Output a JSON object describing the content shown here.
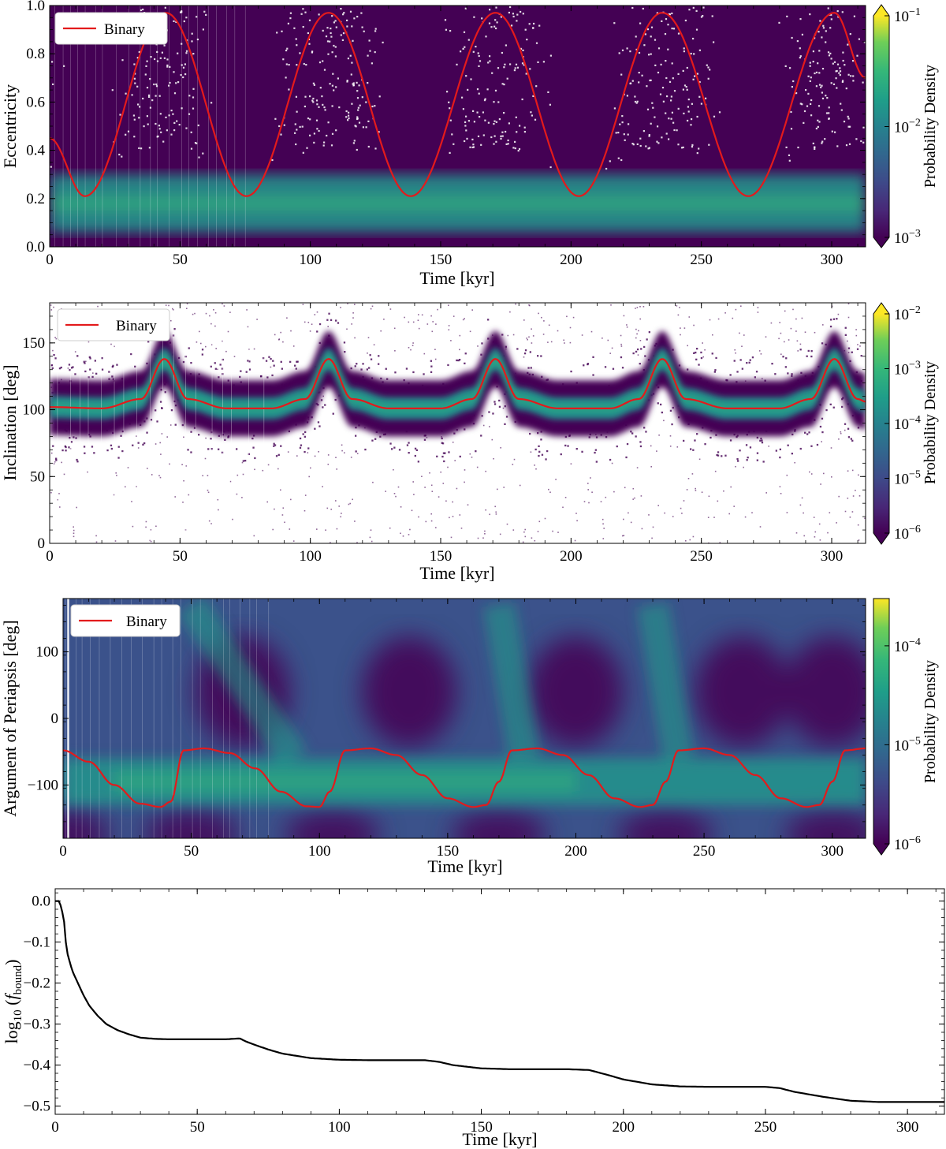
{
  "colors": {
    "binary_line": "#e31a1c",
    "density_low": "#440154",
    "density_mid": "#21918c",
    "density_high": "#fde725",
    "fraction_line": "#000000"
  },
  "chart_data": [
    {
      "type": "heatmap",
      "xlabel": "Time [kyr]",
      "ylabel": "Eccentricity",
      "xlim": [
        0,
        313
      ],
      "ylim": [
        0.0,
        1.0
      ],
      "xticks": [
        0,
        50,
        100,
        150,
        200,
        250,
        300
      ],
      "xtick_labels": [
        "0",
        "50",
        "100",
        "150",
        "200",
        "250",
        "300"
      ],
      "yticks": [
        0.0,
        0.2,
        0.4,
        0.6,
        0.8,
        1.0
      ],
      "ytick_labels": [
        "0.0",
        "0.2",
        "0.4",
        "0.6",
        "0.8",
        "1.0"
      ],
      "colorbar": {
        "label": "Probability Density",
        "scale": "log",
        "ticks": [
          {
            "mantissa": "10",
            "exponent": "−1",
            "value": 0.1
          },
          {
            "mantissa": "10",
            "exponent": "−2",
            "value": 0.01
          },
          {
            "mantissa": "10",
            "exponent": "−3",
            "value": 0.001
          }
        ],
        "range": [
          0.001,
          0.1
        ]
      },
      "density_core": {
        "y_center": 0.18,
        "y_halfwidth": 0.12
      },
      "legend": {
        "label": "Binary",
        "position": "top-left"
      },
      "series": [
        {
          "name": "Binary",
          "x": [
            0,
            13.5,
            44.5,
            75.5,
            107,
            138.5,
            171,
            203,
            235,
            268,
            301,
            313
          ],
          "y": [
            0.45,
            0.21,
            0.97,
            0.21,
            0.97,
            0.21,
            0.97,
            0.21,
            0.97,
            0.21,
            0.97,
            0.7
          ]
        }
      ]
    },
    {
      "type": "heatmap",
      "xlabel": "Time [kyr]",
      "ylabel": "Inclination [deg]",
      "xlim": [
        0,
        313
      ],
      "ylim": [
        0,
        180
      ],
      "xticks": [
        0,
        50,
        100,
        150,
        200,
        250,
        300
      ],
      "xtick_labels": [
        "0",
        "50",
        "100",
        "150",
        "200",
        "250",
        "300"
      ],
      "yticks": [
        0,
        50,
        100,
        150
      ],
      "ytick_labels": [
        "0",
        "50",
        "100",
        "150"
      ],
      "colorbar": {
        "label": "Probability Density",
        "scale": "log",
        "ticks": [
          {
            "mantissa": "10",
            "exponent": "−2",
            "value": 0.01
          },
          {
            "mantissa": "10",
            "exponent": "−3",
            "value": 0.001
          },
          {
            "mantissa": "10",
            "exponent": "−4",
            "value": 0.0001
          },
          {
            "mantissa": "10",
            "exponent": "−5",
            "value": 1e-05
          },
          {
            "mantissa": "10",
            "exponent": "−6",
            "value": 1e-06
          }
        ],
        "range": [
          1e-06,
          0.01
        ]
      },
      "density_core": {
        "halfwidth_deg": 15
      },
      "legend": {
        "label": "Binary",
        "position": "top-left"
      },
      "series": [
        {
          "name": "Binary",
          "x": [
            0,
            20,
            35,
            44,
            53,
            68,
            85,
            98,
            107,
            116,
            130,
            150,
            162,
            171,
            180,
            195,
            215,
            226,
            235,
            244,
            260,
            280,
            292,
            301,
            310,
            313
          ],
          "y": [
            102,
            101,
            108,
            138,
            108,
            101,
            101,
            108,
            138,
            108,
            101,
            101,
            108,
            138,
            108,
            101,
            101,
            108,
            138,
            108,
            101,
            101,
            108,
            138,
            108,
            106
          ]
        }
      ]
    },
    {
      "type": "heatmap",
      "xlabel": "Time [kyr]",
      "ylabel": "Argument of Periapsis [deg]",
      "xlim": [
        0,
        313
      ],
      "ylim": [
        -180,
        180
      ],
      "xticks": [
        0,
        50,
        100,
        150,
        200,
        250,
        300
      ],
      "xtick_labels": [
        "0",
        "50",
        "100",
        "150",
        "200",
        "250",
        "300"
      ],
      "yticks": [
        -100,
        0,
        100
      ],
      "ytick_labels": [
        "−100",
        "0",
        "100"
      ],
      "colorbar": {
        "label": "Probability Density",
        "scale": "log",
        "ticks": [
          {
            "mantissa": "10",
            "exponent": "−4",
            "value": 0.0001
          },
          {
            "mantissa": "10",
            "exponent": "−5",
            "value": 1e-05
          },
          {
            "mantissa": "10",
            "exponent": "−6",
            "value": 1e-06
          }
        ],
        "range": [
          1e-06,
          0.0003
        ]
      },
      "legend": {
        "label": "Binary",
        "position": "top-left"
      },
      "series": [
        {
          "name": "Binary",
          "x": [
            0,
            10,
            20,
            30,
            38,
            42,
            47,
            55,
            65,
            75,
            85,
            95,
            100,
            104,
            110,
            120,
            130,
            140,
            150,
            160,
            165,
            170,
            175,
            185,
            195,
            205,
            215,
            225,
            230,
            235,
            240,
            250,
            260,
            270,
            280,
            290,
            295,
            300,
            305,
            313
          ],
          "y": [
            -48,
            -65,
            -100,
            -128,
            -133,
            -125,
            -48,
            -45,
            -52,
            -75,
            -110,
            -132,
            -133,
            -110,
            -48,
            -45,
            -55,
            -85,
            -120,
            -133,
            -130,
            -95,
            -48,
            -45,
            -55,
            -85,
            -120,
            -133,
            -130,
            -95,
            -48,
            -45,
            -55,
            -85,
            -120,
            -133,
            -130,
            -95,
            -48,
            -45
          ]
        }
      ]
    },
    {
      "type": "line",
      "xlabel": "Time [kyr]",
      "ylabel_prefix": "log",
      "ylabel_sub": "10",
      "ylabel_var": "f",
      "ylabel_var_sub": "bound",
      "xlim": [
        0,
        313
      ],
      "ylim": [
        -0.52,
        0.03
      ],
      "xticks": [
        0,
        50,
        100,
        150,
        200,
        250,
        300
      ],
      "xtick_labels": [
        "0",
        "50",
        "100",
        "150",
        "200",
        "250",
        "300"
      ],
      "yticks": [
        0.0,
        -0.1,
        -0.2,
        -0.3,
        -0.4,
        -0.5
      ],
      "ytick_labels": [
        "0.0",
        "−0.1",
        "−0.2",
        "−0.3",
        "−0.4",
        "−0.5"
      ],
      "series": [
        {
          "x": [
            0,
            1.5,
            3,
            4,
            6,
            8,
            10,
            12,
            15,
            18,
            22,
            26,
            30,
            35,
            40,
            50,
            60,
            65,
            67,
            70,
            75,
            80,
            90,
            100,
            110,
            120,
            130,
            135,
            140,
            150,
            160,
            170,
            180,
            188,
            195,
            200,
            210,
            220,
            230,
            240,
            250,
            255,
            260,
            270,
            280,
            290,
            300,
            313
          ],
          "y": [
            0.0,
            0.0,
            -0.04,
            -0.12,
            -0.17,
            -0.2,
            -0.23,
            -0.255,
            -0.28,
            -0.3,
            -0.315,
            -0.325,
            -0.333,
            -0.336,
            -0.337,
            -0.337,
            -0.337,
            -0.335,
            -0.342,
            -0.35,
            -0.362,
            -0.372,
            -0.383,
            -0.387,
            -0.388,
            -0.388,
            -0.388,
            -0.392,
            -0.4,
            -0.408,
            -0.41,
            -0.41,
            -0.41,
            -0.412,
            -0.425,
            -0.435,
            -0.447,
            -0.452,
            -0.453,
            -0.453,
            -0.453,
            -0.456,
            -0.465,
            -0.477,
            -0.487,
            -0.49,
            -0.49,
            -0.49
          ]
        }
      ]
    }
  ]
}
